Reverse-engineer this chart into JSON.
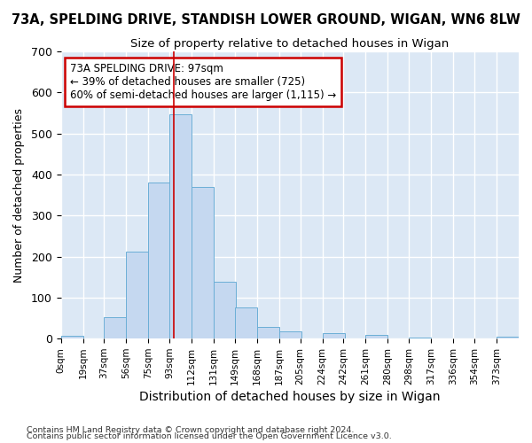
{
  "title1": "73A, SPELDING DRIVE, STANDISH LOWER GROUND, WIGAN, WN6 8LW",
  "title2": "Size of property relative to detached houses in Wigan",
  "xlabel": "Distribution of detached houses by size in Wigan",
  "ylabel": "Number of detached properties",
  "bin_labels": [
    "0sqm",
    "19sqm",
    "37sqm",
    "56sqm",
    "75sqm",
    "93sqm",
    "112sqm",
    "131sqm",
    "149sqm",
    "168sqm",
    "187sqm",
    "205sqm",
    "224sqm",
    "242sqm",
    "261sqm",
    "280sqm",
    "298sqm",
    "317sqm",
    "336sqm",
    "354sqm",
    "373sqm"
  ],
  "bar_values": [
    7,
    0,
    52,
    213,
    381,
    547,
    369,
    139,
    76,
    29,
    17,
    0,
    13,
    0,
    9,
    0,
    3,
    0,
    0,
    0,
    5
  ],
  "bin_edges": [
    0,
    19,
    37,
    56,
    75,
    93,
    112,
    131,
    149,
    168,
    187,
    205,
    224,
    242,
    261,
    280,
    298,
    317,
    336,
    354,
    373
  ],
  "vline_x": 97,
  "annotation_text": "73A SPELDING DRIVE: 97sqm\n← 39% of detached houses are smaller (725)\n60% of semi-detached houses are larger (1,115) →",
  "bar_color": "#c5d8f0",
  "bar_edge_color": "#6baed6",
  "vline_color": "#cc0000",
  "annotation_box_edge": "#cc0000",
  "annotation_box_face": "#ffffff",
  "bg_color": "#dce8f5",
  "grid_color": "#ffffff",
  "fig_bg_color": "#ffffff",
  "footnote1": "Contains HM Land Registry data © Crown copyright and database right 2024.",
  "footnote2": "Contains public sector information licensed under the Open Government Licence v3.0.",
  "ylim": [
    0,
    700
  ],
  "yticks": [
    0,
    100,
    200,
    300,
    400,
    500,
    600,
    700
  ]
}
